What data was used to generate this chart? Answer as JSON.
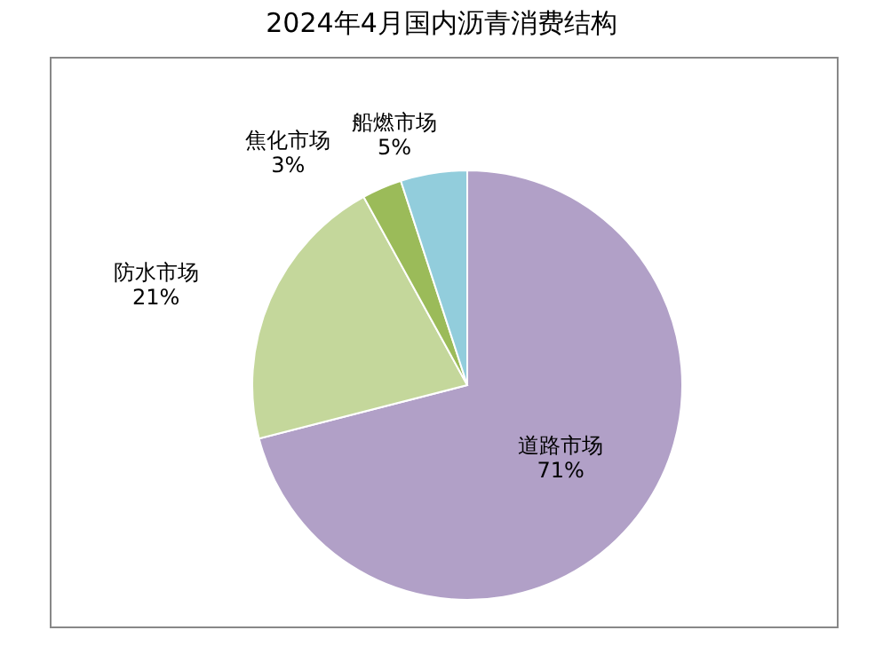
{
  "chart_data": {
    "type": "pie",
    "title": "2024年4月国内沥青消费结构",
    "categories": [
      "道路市场",
      "防水市场",
      "焦化市场",
      "船燃市场"
    ],
    "values": [
      71,
      21,
      3,
      5
    ],
    "colors": [
      "#b1a0c7",
      "#c4d79b",
      "#9bbb59",
      "#92cddc"
    ],
    "value_labels": [
      "71%",
      "21%",
      "3%",
      "5%"
    ],
    "legend": false
  }
}
